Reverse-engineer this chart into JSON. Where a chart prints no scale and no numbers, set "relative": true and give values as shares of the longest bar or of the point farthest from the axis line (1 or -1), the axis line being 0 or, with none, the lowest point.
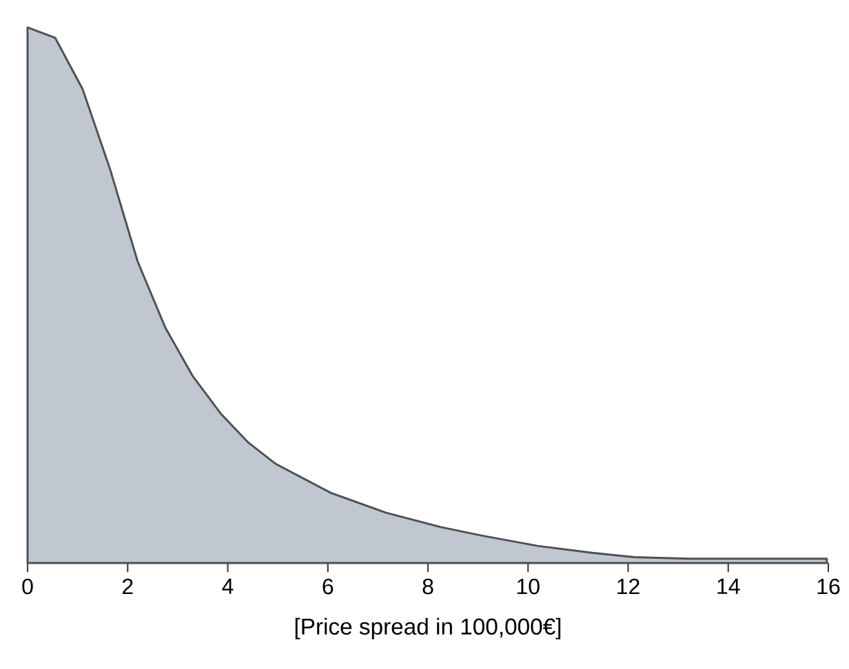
{
  "chart_data": {
    "type": "area",
    "xlabel": "[Price spread in 100,000€]",
    "relative": true,
    "grid": false,
    "xlim": [
      0,
      16
    ],
    "xticks": [
      0,
      2,
      4,
      6,
      8,
      10,
      12,
      14,
      16
    ],
    "x": [
      0,
      0.55,
      1.1,
      1.65,
      2.2,
      2.75,
      3.3,
      3.86,
      4.41,
      4.96,
      6.06,
      7.16,
      8.26,
      9.09,
      10.19,
      11.29,
      12.12,
      13.22,
      15.97
    ],
    "series": [
      {
        "color": "#c1c7d1",
        "values": [
          1.0,
          0.981,
          0.885,
          0.735,
          0.563,
          0.44,
          0.349,
          0.279,
          0.225,
          0.185,
          0.131,
          0.094,
          0.067,
          0.051,
          0.032,
          0.019,
          0.011,
          0.008,
          0.008
        ]
      }
    ]
  }
}
